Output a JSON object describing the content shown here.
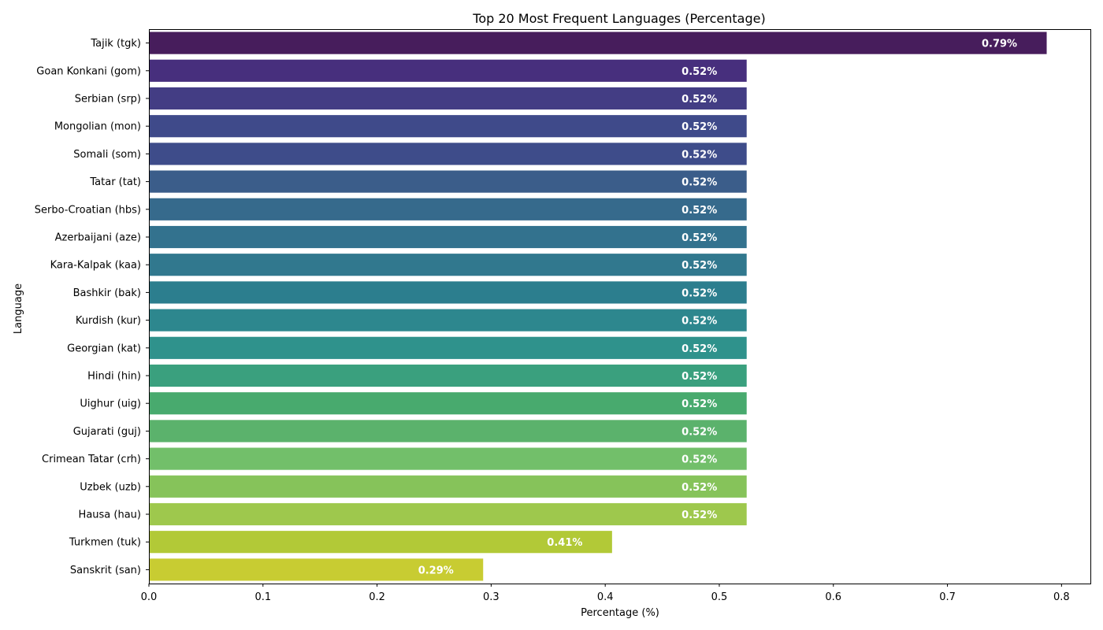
{
  "chart_data": {
    "type": "bar",
    "orientation": "horizontal",
    "title": "Top 20 Most Frequent Languages (Percentage)",
    "xlabel": "Percentage (%)",
    "ylabel": "Language",
    "xlim": [
      0,
      0.826
    ],
    "xticks": [
      0.0,
      0.1,
      0.2,
      0.3,
      0.4,
      0.5,
      0.6,
      0.7,
      0.8
    ],
    "xtick_labels": [
      "0.0",
      "0.1",
      "0.2",
      "0.3",
      "0.4",
      "0.5",
      "0.6",
      "0.7",
      "0.8"
    ],
    "grid": false,
    "value_label_suffix": "%",
    "categories": [
      "Tajik (tgk)",
      "Goan Konkani (gom)",
      "Serbian (srp)",
      "Mongolian (mon)",
      "Somali (som)",
      "Tatar (tat)",
      "Serbo-Croatian (hbs)",
      "Azerbaijani (aze)",
      "Kara-Kalpak (kaa)",
      "Bashkir (bak)",
      "Kurdish (kur)",
      "Georgian (kat)",
      "Hindi (hin)",
      "Uighur (uig)",
      "Gujarati (guj)",
      "Crimean Tatar (crh)",
      "Uzbek (uzb)",
      "Hausa (hau)",
      "Turkmen (tuk)",
      "Sanskrit (san)"
    ],
    "values": [
      0.787,
      0.524,
      0.524,
      0.524,
      0.524,
      0.524,
      0.524,
      0.524,
      0.524,
      0.524,
      0.524,
      0.524,
      0.524,
      0.524,
      0.524,
      0.524,
      0.524,
      0.524,
      0.406,
      0.293
    ],
    "value_labels": [
      "0.79%",
      "0.52%",
      "0.52%",
      "0.52%",
      "0.52%",
      "0.52%",
      "0.52%",
      "0.52%",
      "0.52%",
      "0.52%",
      "0.52%",
      "0.52%",
      "0.52%",
      "0.52%",
      "0.52%",
      "0.52%",
      "0.52%",
      "0.52%",
      "0.41%",
      "0.29%"
    ],
    "colors": [
      "#471d5c",
      "#472f7d",
      "#433d84",
      "#3f4a8a",
      "#3e4c8a",
      "#3b5d8a",
      "#366a8c",
      "#33728e",
      "#31788e",
      "#2c7e8e",
      "#2d878e",
      "#2f928c",
      "#3aa07e",
      "#48aa6e",
      "#5bb26c",
      "#72bf6a",
      "#86c35a",
      "#9ec84d",
      "#b2c937",
      "#c8cc32"
    ]
  }
}
